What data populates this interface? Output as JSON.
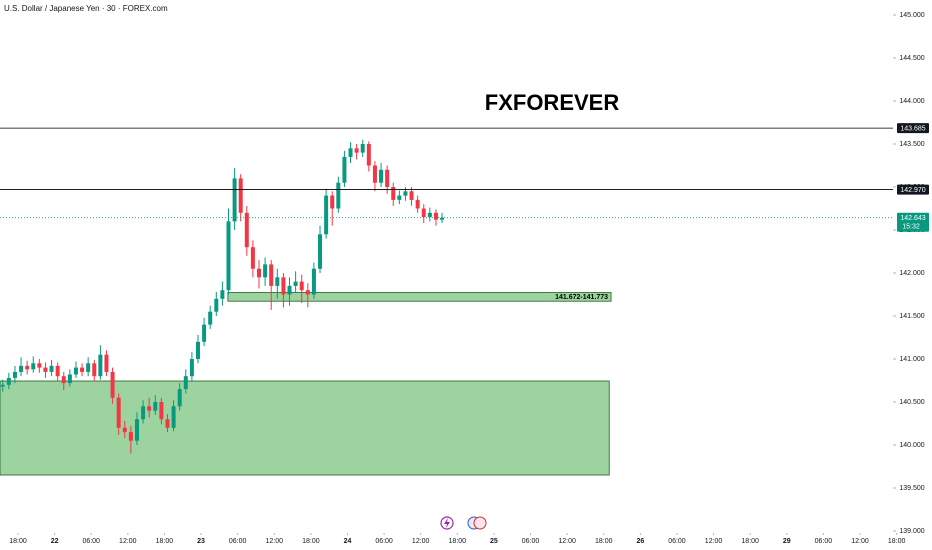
{
  "chart_data": {
    "type": "candlestick",
    "title": "U.S. Dollar / Japanese Yen · 30 · FOREX.com",
    "watermark": "FXFOREVER",
    "up_color": "#089981",
    "down_color": "#f23645",
    "xlim": [
      -2.95,
      149.8
    ],
    "ylim": [
      139.0,
      145.0
    ],
    "yticks": [
      {
        "value": 139.0,
        "label": "139.000"
      },
      {
        "value": 139.5,
        "label": "139.500"
      },
      {
        "value": 140.0,
        "label": "140.000"
      },
      {
        "value": 140.5,
        "label": "140.500"
      },
      {
        "value": 141.0,
        "label": "141.000"
      },
      {
        "value": 141.5,
        "label": "141.500"
      },
      {
        "value": 142.0,
        "label": "142.000"
      },
      {
        "value": 142.5,
        "label": "142.500"
      },
      {
        "value": 143.0,
        "label": "143.000"
      },
      {
        "value": 143.5,
        "label": "143.500"
      },
      {
        "value": 144.0,
        "label": "144.000"
      },
      {
        "value": 144.5,
        "label": "144.500"
      },
      {
        "value": 145.0,
        "label": "145.000"
      }
    ],
    "xticks": [
      {
        "value": 0,
        "label": "18:00"
      },
      {
        "value": 6,
        "label": "22"
      },
      {
        "value": 12,
        "label": "06:00"
      },
      {
        "value": 18,
        "label": "12:00"
      },
      {
        "value": 24,
        "label": "18:00"
      },
      {
        "value": 30,
        "label": "23"
      },
      {
        "value": 36,
        "label": "06:00"
      },
      {
        "value": 42,
        "label": "12:00"
      },
      {
        "value": 48,
        "label": "18:00"
      },
      {
        "value": 54,
        "label": "24"
      },
      {
        "value": 60,
        "label": "06:00"
      },
      {
        "value": 66,
        "label": "12:00"
      },
      {
        "value": 72,
        "label": "18:00"
      },
      {
        "value": 78,
        "label": "25"
      },
      {
        "value": 84,
        "label": "06:00"
      },
      {
        "value": 90,
        "label": "12:00"
      },
      {
        "value": 96,
        "label": "18:00"
      },
      {
        "value": 102,
        "label": "26"
      },
      {
        "value": 108,
        "label": "06:00"
      },
      {
        "value": 114,
        "label": "12:00"
      },
      {
        "value": 120,
        "label": "18:00"
      },
      {
        "value": 126,
        "label": "29"
      },
      {
        "value": 132,
        "label": "06:00"
      },
      {
        "value": 138,
        "label": "12:00"
      },
      {
        "value": 144,
        "label": "18:00"
      }
    ],
    "x": [
      -2.5,
      -1.5,
      -0.5,
      0.5,
      1.5,
      2.5,
      3.5,
      4.5,
      5.5,
      6.5,
      7.5,
      8.5,
      9.5,
      10.5,
      11.5,
      12.5,
      13.5,
      14.5,
      15.5,
      16.5,
      17.5,
      18.5,
      19.5,
      20.5,
      21.5,
      22.5,
      23.5,
      24.5,
      25.5,
      26.5,
      27.5,
      28.5,
      29.5,
      30.5,
      31.5,
      32.5,
      33.5,
      34.5,
      35.5,
      36.5,
      37.5,
      38.5,
      39.5,
      40.5,
      41.5,
      42.5,
      43.5,
      44.5,
      45.5,
      46.5,
      47.5,
      48.5,
      49.5,
      50.5,
      51.5,
      52.5,
      53.5,
      54.5,
      55.5,
      56.5,
      57.5,
      58.5,
      59.5,
      60.5,
      61.5,
      62.5,
      63.5,
      64.5,
      65.5,
      66.5,
      67.5,
      68.5,
      69.5
    ],
    "open": [
      140.68,
      140.7,
      140.78,
      140.85,
      140.92,
      140.88,
      140.95,
      140.9,
      140.85,
      140.92,
      140.8,
      140.72,
      140.82,
      140.9,
      140.85,
      140.95,
      140.8,
      141.05,
      140.85,
      140.55,
      140.2,
      140.15,
      140.05,
      140.3,
      140.45,
      140.4,
      140.5,
      140.3,
      140.2,
      140.45,
      140.65,
      140.8,
      141.0,
      141.2,
      141.4,
      141.55,
      141.7,
      141.8,
      142.6,
      143.1,
      142.7,
      142.3,
      142.05,
      141.95,
      142.1,
      141.85,
      141.95,
      141.75,
      141.85,
      141.9,
      141.8,
      141.75,
      142.05,
      142.45,
      142.9,
      142.75,
      143.05,
      143.35,
      143.45,
      143.4,
      143.5,
      143.25,
      143.05,
      143.2,
      143.0,
      142.85,
      142.9,
      142.95,
      142.85,
      142.75,
      142.65,
      142.7,
      142.62
    ],
    "high": [
      140.76,
      140.84,
      140.92,
      141.02,
      140.98,
      141.03,
      141.0,
      140.96,
      140.99,
      140.96,
      140.85,
      140.88,
      140.97,
      140.95,
      141.02,
      140.99,
      141.16,
      141.1,
      140.9,
      140.6,
      140.28,
      140.22,
      140.38,
      140.52,
      140.55,
      140.58,
      140.55,
      140.36,
      140.52,
      140.72,
      140.88,
      141.08,
      141.28,
      141.48,
      141.62,
      141.78,
      141.9,
      142.75,
      143.22,
      143.15,
      142.78,
      142.38,
      142.15,
      142.18,
      142.15,
      142.05,
      142.0,
      141.95,
      142.02,
      141.98,
      141.88,
      142.12,
      142.55,
      142.98,
      142.95,
      143.12,
      143.42,
      143.52,
      143.5,
      143.55,
      143.53,
      143.3,
      143.28,
      143.25,
      143.05,
      142.96,
      143.0,
      143.0,
      142.9,
      142.8,
      142.76,
      142.74,
      142.7
    ],
    "low": [
      140.62,
      140.65,
      140.72,
      140.8,
      140.82,
      140.84,
      140.84,
      140.78,
      140.8,
      140.74,
      140.64,
      140.68,
      140.78,
      140.8,
      140.8,
      140.74,
      140.76,
      140.8,
      140.48,
      140.12,
      140.08,
      139.9,
      140.0,
      140.25,
      140.32,
      140.35,
      140.24,
      140.15,
      140.16,
      140.4,
      140.6,
      140.75,
      140.95,
      141.15,
      141.35,
      141.5,
      141.62,
      141.75,
      142.5,
      142.6,
      142.2,
      141.95,
      141.82,
      141.85,
      141.57,
      141.7,
      141.6,
      141.62,
      141.78,
      141.65,
      141.6,
      141.7,
      142.0,
      142.4,
      142.55,
      142.7,
      143.0,
      143.28,
      143.32,
      143.35,
      143.18,
      142.95,
      143.0,
      142.92,
      142.78,
      142.8,
      142.84,
      142.78,
      142.7,
      142.58,
      142.6,
      142.55,
      142.58
    ],
    "close": [
      140.7,
      140.78,
      140.85,
      140.92,
      140.88,
      140.95,
      140.9,
      140.85,
      140.92,
      140.8,
      140.72,
      140.82,
      140.9,
      140.85,
      140.95,
      140.8,
      141.05,
      140.85,
      140.55,
      140.2,
      140.15,
      140.05,
      140.3,
      140.45,
      140.4,
      140.5,
      140.3,
      140.2,
      140.45,
      140.65,
      140.8,
      141.0,
      141.2,
      141.4,
      141.55,
      141.7,
      141.8,
      142.6,
      143.1,
      142.7,
      142.3,
      142.05,
      141.95,
      142.1,
      141.85,
      141.95,
      141.75,
      141.85,
      141.9,
      141.8,
      141.75,
      142.05,
      142.45,
      142.9,
      142.75,
      143.05,
      143.35,
      143.45,
      143.4,
      143.5,
      143.25,
      143.05,
      143.2,
      143.0,
      142.85,
      142.9,
      142.95,
      142.85,
      142.75,
      142.65,
      142.7,
      142.62,
      142.643
    ],
    "levels": [
      {
        "value": 143.685,
        "label": "143.685"
      },
      {
        "value": 142.97,
        "label": "142.970"
      }
    ],
    "last_price": {
      "value": 142.643,
      "label": "142.643",
      "countdown": "15:32"
    },
    "zones": [
      {
        "x0": 34.4,
        "x1": 97.2,
        "low": 141.672,
        "high": 141.773,
        "label": "141.672-141.773"
      },
      {
        "x0": -2.95,
        "x1": 96.9,
        "low": 139.651,
        "high": 140.744
      }
    ]
  }
}
